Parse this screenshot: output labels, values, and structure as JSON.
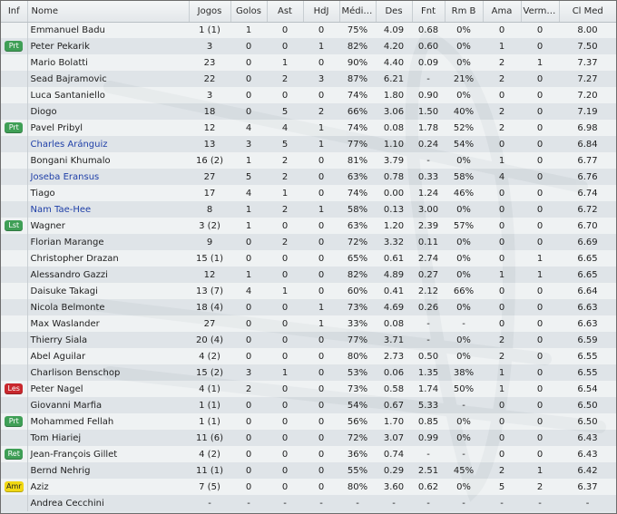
{
  "columns": [
    "Inf",
    "Nome",
    "Jogos",
    "Golos",
    "Ast",
    "HdJ",
    "Média ...",
    "Des",
    "Fnt",
    "Rm B",
    "Ama",
    "Vermel...",
    "Cl Med"
  ],
  "badge_colors": {
    "Prt": "#3f9f56",
    "Lst": "#3f9f56",
    "Ret": "#3f9f56",
    "Les": "#c8282d",
    "Amr": "#f1d814"
  },
  "link_color": "#2040a8",
  "players": [
    {
      "inf": "",
      "name": "Emmanuel Badu",
      "link": false,
      "jogos": "1 (1)",
      "golos": "1",
      "ast": "0",
      "hdj": "0",
      "media": "75%",
      "des": "4.09",
      "fnt": "0.68",
      "rmb": "0%",
      "ama": "0",
      "verm": "0",
      "clmed": "8.00"
    },
    {
      "inf": "Prt",
      "name": "Peter Pekarik",
      "link": false,
      "jogos": "3",
      "golos": "0",
      "ast": "0",
      "hdj": "1",
      "media": "82%",
      "des": "4.20",
      "fnt": "0.60",
      "rmb": "0%",
      "ama": "1",
      "verm": "0",
      "clmed": "7.50"
    },
    {
      "inf": "",
      "name": "Mario Bolatti",
      "link": false,
      "jogos": "23",
      "golos": "0",
      "ast": "1",
      "hdj": "0",
      "media": "90%",
      "des": "4.40",
      "fnt": "0.09",
      "rmb": "0%",
      "ama": "2",
      "verm": "1",
      "clmed": "7.37"
    },
    {
      "inf": "",
      "name": "Sead Bajramovic",
      "link": false,
      "jogos": "22",
      "golos": "0",
      "ast": "2",
      "hdj": "3",
      "media": "87%",
      "des": "6.21",
      "fnt": "-",
      "rmb": "21%",
      "ama": "2",
      "verm": "0",
      "clmed": "7.27"
    },
    {
      "inf": "",
      "name": "Luca Santaniello",
      "link": false,
      "jogos": "3",
      "golos": "0",
      "ast": "0",
      "hdj": "0",
      "media": "74%",
      "des": "1.80",
      "fnt": "0.90",
      "rmb": "0%",
      "ama": "0",
      "verm": "0",
      "clmed": "7.20"
    },
    {
      "inf": "",
      "name": "Diogo",
      "link": false,
      "jogos": "18",
      "golos": "0",
      "ast": "5",
      "hdj": "2",
      "media": "66%",
      "des": "3.06",
      "fnt": "1.50",
      "rmb": "40%",
      "ama": "2",
      "verm": "0",
      "clmed": "7.19"
    },
    {
      "inf": "Prt",
      "name": "Pavel Pribyl",
      "link": false,
      "jogos": "12",
      "golos": "4",
      "ast": "4",
      "hdj": "1",
      "media": "74%",
      "des": "0.08",
      "fnt": "1.78",
      "rmb": "52%",
      "ama": "2",
      "verm": "0",
      "clmed": "6.98"
    },
    {
      "inf": "",
      "name": "Charles Aránguiz",
      "link": true,
      "jogos": "13",
      "golos": "3",
      "ast": "5",
      "hdj": "1",
      "media": "77%",
      "des": "1.10",
      "fnt": "0.24",
      "rmb": "54%",
      "ama": "0",
      "verm": "0",
      "clmed": "6.84"
    },
    {
      "inf": "",
      "name": "Bongani Khumalo",
      "link": false,
      "jogos": "16 (2)",
      "golos": "1",
      "ast": "2",
      "hdj": "0",
      "media": "81%",
      "des": "3.79",
      "fnt": "-",
      "rmb": "0%",
      "ama": "1",
      "verm": "0",
      "clmed": "6.77"
    },
    {
      "inf": "",
      "name": "Joseba Eransus",
      "link": true,
      "jogos": "27",
      "golos": "5",
      "ast": "2",
      "hdj": "0",
      "media": "63%",
      "des": "0.78",
      "fnt": "0.33",
      "rmb": "58%",
      "ama": "4",
      "verm": "0",
      "clmed": "6.76"
    },
    {
      "inf": "",
      "name": "Tiago",
      "link": false,
      "jogos": "17",
      "golos": "4",
      "ast": "1",
      "hdj": "0",
      "media": "74%",
      "des": "0.00",
      "fnt": "1.24",
      "rmb": "46%",
      "ama": "0",
      "verm": "0",
      "clmed": "6.74"
    },
    {
      "inf": "",
      "name": "Nam Tae-Hee",
      "link": true,
      "jogos": "8",
      "golos": "1",
      "ast": "2",
      "hdj": "1",
      "media": "58%",
      "des": "0.13",
      "fnt": "3.00",
      "rmb": "0%",
      "ama": "0",
      "verm": "0",
      "clmed": "6.72"
    },
    {
      "inf": "Lst",
      "name": "Wagner",
      "link": false,
      "jogos": "3 (2)",
      "golos": "1",
      "ast": "0",
      "hdj": "0",
      "media": "63%",
      "des": "1.20",
      "fnt": "2.39",
      "rmb": "57%",
      "ama": "0",
      "verm": "0",
      "clmed": "6.70"
    },
    {
      "inf": "",
      "name": "Florian Marange",
      "link": false,
      "jogos": "9",
      "golos": "0",
      "ast": "2",
      "hdj": "0",
      "media": "72%",
      "des": "3.32",
      "fnt": "0.11",
      "rmb": "0%",
      "ama": "0",
      "verm": "0",
      "clmed": "6.69"
    },
    {
      "inf": "",
      "name": "Christopher Drazan",
      "link": false,
      "jogos": "15 (1)",
      "golos": "0",
      "ast": "0",
      "hdj": "0",
      "media": "65%",
      "des": "0.61",
      "fnt": "2.74",
      "rmb": "0%",
      "ama": "0",
      "verm": "1",
      "clmed": "6.65"
    },
    {
      "inf": "",
      "name": "Alessandro Gazzi",
      "link": false,
      "jogos": "12",
      "golos": "1",
      "ast": "0",
      "hdj": "0",
      "media": "82%",
      "des": "4.89",
      "fnt": "0.27",
      "rmb": "0%",
      "ama": "1",
      "verm": "1",
      "clmed": "6.65"
    },
    {
      "inf": "",
      "name": "Daisuke Takagi",
      "link": false,
      "jogos": "13 (7)",
      "golos": "4",
      "ast": "1",
      "hdj": "0",
      "media": "60%",
      "des": "0.41",
      "fnt": "2.12",
      "rmb": "66%",
      "ama": "0",
      "verm": "0",
      "clmed": "6.64"
    },
    {
      "inf": "",
      "name": "Nicola Belmonte",
      "link": false,
      "jogos": "18 (4)",
      "golos": "0",
      "ast": "0",
      "hdj": "1",
      "media": "73%",
      "des": "4.69",
      "fnt": "0.26",
      "rmb": "0%",
      "ama": "0",
      "verm": "0",
      "clmed": "6.63"
    },
    {
      "inf": "",
      "name": "Max Waslander",
      "link": false,
      "jogos": "27",
      "golos": "0",
      "ast": "0",
      "hdj": "1",
      "media": "33%",
      "des": "0.08",
      "fnt": "-",
      "rmb": "-",
      "ama": "0",
      "verm": "0",
      "clmed": "6.63"
    },
    {
      "inf": "",
      "name": "Thierry Siala",
      "link": false,
      "jogos": "20 (4)",
      "golos": "0",
      "ast": "0",
      "hdj": "0",
      "media": "77%",
      "des": "3.71",
      "fnt": "-",
      "rmb": "0%",
      "ama": "2",
      "verm": "0",
      "clmed": "6.59"
    },
    {
      "inf": "",
      "name": "Abel Aguilar",
      "link": false,
      "jogos": "4 (2)",
      "golos": "0",
      "ast": "0",
      "hdj": "0",
      "media": "80%",
      "des": "2.73",
      "fnt": "0.50",
      "rmb": "0%",
      "ama": "2",
      "verm": "0",
      "clmed": "6.55"
    },
    {
      "inf": "",
      "name": "Charlison Benschop",
      "link": false,
      "jogos": "15 (2)",
      "golos": "3",
      "ast": "1",
      "hdj": "0",
      "media": "53%",
      "des": "0.06",
      "fnt": "1.35",
      "rmb": "38%",
      "ama": "1",
      "verm": "0",
      "clmed": "6.55"
    },
    {
      "inf": "Les",
      "name": "Peter Nagel",
      "link": false,
      "jogos": "4 (1)",
      "golos": "2",
      "ast": "0",
      "hdj": "0",
      "media": "73%",
      "des": "0.58",
      "fnt": "1.74",
      "rmb": "50%",
      "ama": "1",
      "verm": "0",
      "clmed": "6.54"
    },
    {
      "inf": "",
      "name": "Giovanni Marfia",
      "link": false,
      "jogos": "1 (1)",
      "golos": "0",
      "ast": "0",
      "hdj": "0",
      "media": "54%",
      "des": "0.67",
      "fnt": "5.33",
      "rmb": "-",
      "ama": "0",
      "verm": "0",
      "clmed": "6.50"
    },
    {
      "inf": "Prt",
      "name": "Mohammed Fellah",
      "link": false,
      "jogos": "1 (1)",
      "golos": "0",
      "ast": "0",
      "hdj": "0",
      "media": "56%",
      "des": "1.70",
      "fnt": "0.85",
      "rmb": "0%",
      "ama": "0",
      "verm": "0",
      "clmed": "6.50"
    },
    {
      "inf": "",
      "name": "Tom Hiariej",
      "link": false,
      "jogos": "11 (6)",
      "golos": "0",
      "ast": "0",
      "hdj": "0",
      "media": "72%",
      "des": "3.07",
      "fnt": "0.99",
      "rmb": "0%",
      "ama": "0",
      "verm": "0",
      "clmed": "6.43"
    },
    {
      "inf": "Ret",
      "name": "Jean-François Gillet",
      "link": false,
      "jogos": "4 (2)",
      "golos": "0",
      "ast": "0",
      "hdj": "0",
      "media": "36%",
      "des": "0.74",
      "fnt": "-",
      "rmb": "-",
      "ama": "0",
      "verm": "0",
      "clmed": "6.43"
    },
    {
      "inf": "",
      "name": "Bernd Nehrig",
      "link": false,
      "jogos": "11 (1)",
      "golos": "0",
      "ast": "0",
      "hdj": "0",
      "media": "55%",
      "des": "0.29",
      "fnt": "2.51",
      "rmb": "45%",
      "ama": "2",
      "verm": "1",
      "clmed": "6.42"
    },
    {
      "inf": "Amr",
      "name": "Aziz",
      "link": false,
      "jogos": "7 (5)",
      "golos": "0",
      "ast": "0",
      "hdj": "0",
      "media": "80%",
      "des": "3.60",
      "fnt": "0.62",
      "rmb": "0%",
      "ama": "5",
      "verm": "2",
      "clmed": "6.37"
    },
    {
      "inf": "",
      "name": "Andrea Cecchini",
      "link": false,
      "jogos": "-",
      "golos": "-",
      "ast": "-",
      "hdj": "-",
      "media": "-",
      "des": "-",
      "fnt": "-",
      "rmb": "-",
      "ama": "-",
      "verm": "-",
      "clmed": "-"
    }
  ]
}
